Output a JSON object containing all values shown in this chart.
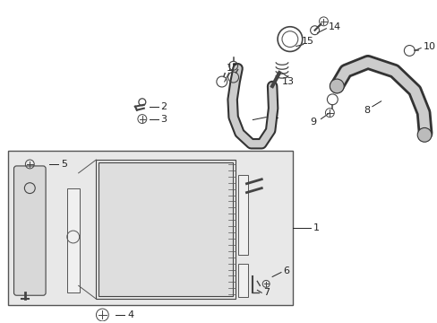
{
  "background_color": "#ffffff",
  "fig_width": 4.89,
  "fig_height": 3.6,
  "dpi": 100,
  "label_color": "#222222",
  "line_color": "#333333",
  "part_fill": "#e8e8e8",
  "box_fill": "#eeeeee",
  "hose_outer": "#333333",
  "hose_inner": "#cccccc"
}
